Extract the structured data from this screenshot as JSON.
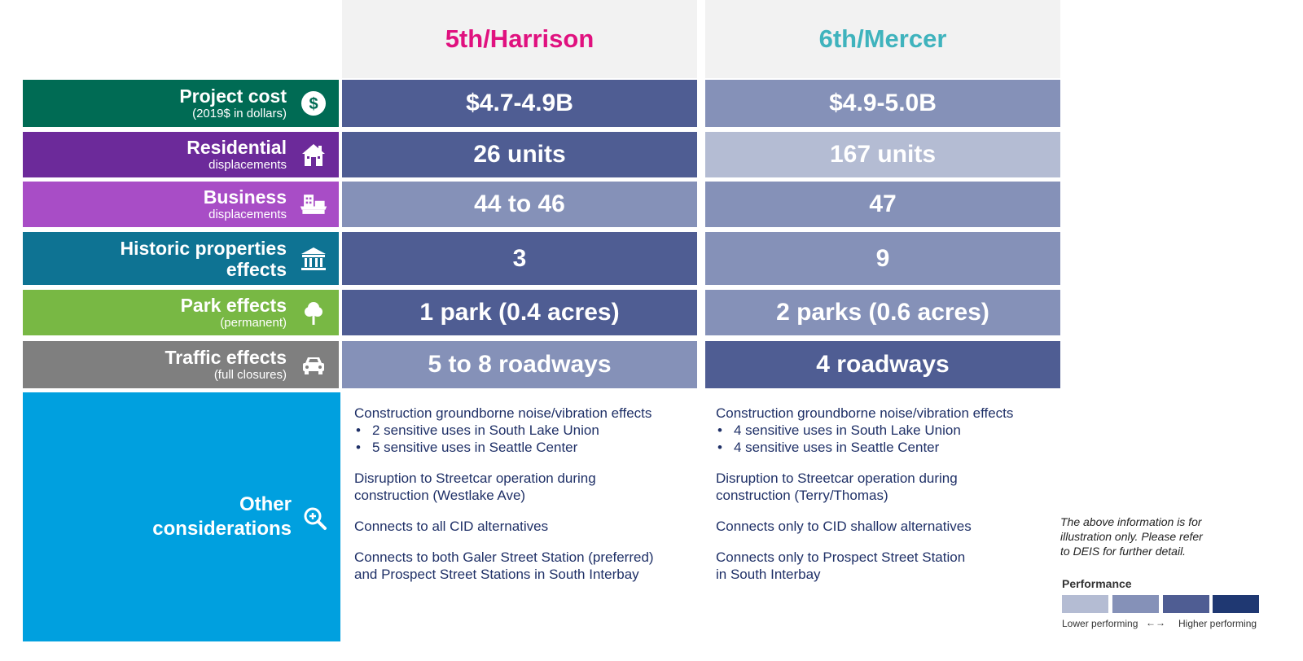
{
  "columns": {
    "harrison": "5th/Harrison",
    "mercer": "6th/Mercer"
  },
  "rows": [
    {
      "label": "Project cost",
      "sub": "(2019$ in dollars)",
      "icon": "dollar-icon",
      "color": "#006b54",
      "harrison": {
        "value": "$4.7-4.9B",
        "level": 3
      },
      "mercer": {
        "value": "$4.9-5.0B",
        "level": 2
      }
    },
    {
      "label": "Residential",
      "sub": "displacements",
      "icon": "house-icon",
      "color": "#6c2a9a",
      "harrison": {
        "value": "26 units",
        "level": 3
      },
      "mercer": {
        "value": "167 units",
        "level": 1
      }
    },
    {
      "label": "Business",
      "sub": "displacements",
      "icon": "storefront-icon",
      "color": "#a84dc6",
      "harrison": {
        "value": "44 to 46",
        "level": 2
      },
      "mercer": {
        "value": "47",
        "level": 2
      }
    },
    {
      "label": "Historic properties",
      "label2": "effects",
      "icon": "museum-icon",
      "color": "#0e7393",
      "harrison": {
        "value": "3",
        "level": 3
      },
      "mercer": {
        "value": "9",
        "level": 2
      }
    },
    {
      "label": "Park effects",
      "sub": "(permanent)",
      "icon": "tree-icon",
      "color": "#78b844",
      "harrison": {
        "value": "1 park (0.4 acres)",
        "level": 3
      },
      "mercer": {
        "value": "2 parks (0.6 acres)",
        "level": 2
      }
    },
    {
      "label": "Traffic effects",
      "sub": "(full closures)",
      "icon": "car-icon",
      "color": "#7f7f7f",
      "harrison": {
        "value": "5 to 8 roadways",
        "level": 2
      },
      "mercer": {
        "value": "4 roadways",
        "level": 3
      }
    }
  ],
  "other": {
    "label_line1": "Other",
    "label_line2": "considerations",
    "icon": "zoom-in-icon",
    "color": "#00a0df",
    "harrison": {
      "noise_title": "Construction groundborne noise/vibration effects",
      "noise_b1": "2 sensitive uses in South Lake Union",
      "noise_b2": "5 sensitive uses in Seattle Center",
      "streetcar_l1": "Disruption to Streetcar operation during",
      "streetcar_l2": "construction (Westlake Ave)",
      "cid": "Connects to all CID alternatives",
      "station_l1": "Connects to both Galer Street Station (preferred)",
      "station_l2": "and Prospect Street Stations in South Interbay"
    },
    "mercer": {
      "noise_title": "Construction groundborne noise/vibration effects",
      "noise_b1": "4 sensitive uses in South Lake Union",
      "noise_b2": "4 sensitive uses in Seattle Center",
      "streetcar_l1": "Disruption to Streetcar operation during",
      "streetcar_l2": "construction (Terry/Thomas)",
      "cid": "Connects only to CID shallow alternatives",
      "station_l1": "Connects only to Prospect Street Station",
      "station_l2": "in South Interbay"
    }
  },
  "disclaimer": {
    "l1": "The above information is for",
    "l2": "illustration only. Please refer",
    "l3": "to DEIS for further detail."
  },
  "legend": {
    "title": "Performance",
    "colors": [
      "#b4bcd3",
      "#8591b8",
      "#4f5d93",
      "#1f3872"
    ],
    "low": "Lower performing",
    "arrow": "←→",
    "high": "Higher performing"
  }
}
